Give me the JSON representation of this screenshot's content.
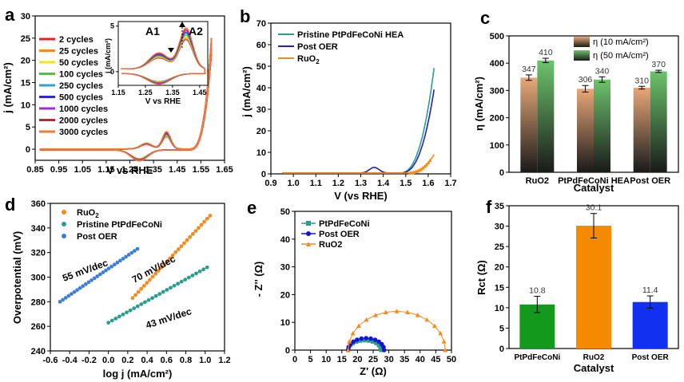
{
  "chart_data": [
    {
      "panel": "a",
      "type": "line",
      "xlabel": "V vs RHE",
      "ylabel": "j (mA/cm²)",
      "xlim": [
        0.85,
        1.65
      ],
      "ylim": [
        -2.5,
        30
      ],
      "xticks": [
        "0.85",
        "0.95",
        "1.05",
        "1.15",
        "1.25",
        "1.35",
        "1.45",
        "1.55",
        "1.65"
      ],
      "yticks": [
        "0",
        "5",
        "10",
        "15",
        "20",
        "25",
        "30"
      ],
      "legend_position": "left",
      "series": [
        {
          "name": "2 cycles",
          "color": "#e8202a"
        },
        {
          "name": "25 cycles",
          "color": "#f58a25"
        },
        {
          "name": "50 cycles",
          "color": "#f2e31b"
        },
        {
          "name": "100 cycles",
          "color": "#36d42c"
        },
        {
          "name": "250 cycles",
          "color": "#2fa0d8"
        },
        {
          "name": "500 cycles",
          "color": "#2b2bd0"
        },
        {
          "name": "1000 cycles",
          "color": "#9b2fd8"
        },
        {
          "name": "2000 cycles",
          "color": "#d41d2b"
        },
        {
          "name": "3000 cycles",
          "color": "#f07a3a"
        }
      ],
      "inset": {
        "xlabel": "V vs RHE",
        "ylabel": "j (mA/cm²)",
        "xlim": [
          1.15,
          1.48
        ],
        "ylim": [
          -1.5,
          5.5
        ],
        "xticks": [
          "1.15",
          "1.25",
          "1.35",
          "1.45"
        ],
        "yticks": [
          "0",
          "5"
        ],
        "peaks": [
          "A1",
          "A2"
        ]
      }
    },
    {
      "panel": "b",
      "type": "line",
      "xlabel": "V (vs RHE)",
      "ylabel": "j (mA/cm²)",
      "xlim": [
        0.9,
        1.7
      ],
      "ylim": [
        0,
        70
      ],
      "xticks": [
        "0.9",
        "1.0",
        "1.1",
        "1.2",
        "1.3",
        "1.4",
        "1.5",
        "1.6",
        "1.7"
      ],
      "yticks": [
        "0",
        "10",
        "20",
        "30",
        "40",
        "50",
        "60",
        "70"
      ],
      "legend_position": "top-left",
      "series": [
        {
          "name": "Pristine PtPdFeCoNi HEA",
          "color": "#2a9d8f"
        },
        {
          "name": "Post OER",
          "color": "#2323b8"
        },
        {
          "name": "RuO",
          "name_sub": "2",
          "color": "#f28c1e"
        }
      ]
    },
    {
      "panel": "c",
      "type": "bar",
      "xlabel": "Catalyst",
      "ylabel": "η (mA/cm²)",
      "ylim": [
        0,
        500
      ],
      "yticks": [
        "0",
        "100",
        "200",
        "300",
        "400",
        "500"
      ],
      "categories": [
        "RuO2",
        "PtPdFeCoNi HEA",
        "Post OER"
      ],
      "legend_position": "top-right",
      "series": [
        {
          "name": "η (10 mA/cm²)",
          "values": [
            347,
            306,
            310
          ],
          "errors": [
            10,
            12,
            5
          ],
          "color": "#e8a878"
        },
        {
          "name": "η (50 mA/cm²)",
          "values": [
            410,
            340,
            370
          ],
          "errors": [
            8,
            10,
            4
          ],
          "color": "#6cc46c"
        }
      ],
      "value_labels": [
        [
          "347",
          "306",
          "310"
        ],
        [
          "410",
          "340",
          "370"
        ]
      ]
    },
    {
      "panel": "d",
      "type": "scatter",
      "xlabel": "log j (mA/cm²)",
      "ylabel": "Overpotential (mV)",
      "xlim": [
        -0.6,
        1.2
      ],
      "ylim": [
        240,
        360
      ],
      "xticks": [
        "-0.6",
        "-0.4",
        "-0.2",
        "0.0",
        "0.2",
        "0.4",
        "0.6",
        "0.8",
        "1.0",
        "1.2"
      ],
      "yticks": [
        "240",
        "260",
        "280",
        "300",
        "320",
        "340",
        "360"
      ],
      "legend_position": "top-left",
      "series": [
        {
          "name": "RuO",
          "name_sub": "2",
          "color": "#f58a1f",
          "x_range": [
            0.25,
            1.05
          ],
          "y_range": [
            283,
            350
          ]
        },
        {
          "name": "Pristine PtPdFeCoNi",
          "color": "#2a9d8f",
          "x_range": [
            0.0,
            1.02
          ],
          "y_range": [
            263,
            308
          ]
        },
        {
          "name": "Post OER",
          "color": "#3b7dd8",
          "x_range": [
            -0.5,
            0.3
          ],
          "y_range": [
            280,
            323
          ]
        }
      ],
      "annotations": [
        "55 mV/dec",
        "70 mV/dec",
        "43 mV/dec"
      ]
    },
    {
      "panel": "e",
      "type": "scatter",
      "xlabel": "Z' (Ω)",
      "ylabel": "- Z'' (Ω)",
      "xlim": [
        0,
        50
      ],
      "ylim": [
        0,
        50
      ],
      "xticks": [
        "0",
        "5",
        "10",
        "15",
        "20",
        "25",
        "30",
        "35",
        "40",
        "45",
        "50"
      ],
      "yticks": [
        "0",
        "10",
        "20",
        "30",
        "40",
        "50"
      ],
      "legend_position": "top-left",
      "series": [
        {
          "name": "PtPdFeCoNi",
          "color": "#2a9d8f",
          "x_range": [
            17,
            27.5
          ],
          "peak_y": 3.5
        },
        {
          "name": "Post OER",
          "color": "#1515d0",
          "x_range": [
            17,
            28.5
          ],
          "peak_y": 4.3
        },
        {
          "name": "RuO2",
          "color": "#f58a1f",
          "x_range": [
            17,
            48
          ],
          "peak_y": 14
        }
      ]
    },
    {
      "panel": "f",
      "type": "bar",
      "xlabel": "Catalyst",
      "ylabel": "Rct (Ω)",
      "ylim": [
        0,
        35
      ],
      "yticks": [
        "0",
        "5",
        "10",
        "15",
        "20",
        "25",
        "30",
        "35"
      ],
      "categories": [
        "PtPdFeCoNi",
        "RuO2",
        "Post OER"
      ],
      "values": [
        10.8,
        30.1,
        11.4
      ],
      "errors": [
        2.0,
        3.0,
        1.5
      ],
      "colors": [
        "#139a1c",
        "#f58a00",
        "#1230f0"
      ],
      "value_labels": [
        "10.8",
        "30.1",
        "11.4"
      ]
    }
  ],
  "panel_letters": [
    "a",
    "b",
    "c",
    "d",
    "e",
    "f"
  ]
}
